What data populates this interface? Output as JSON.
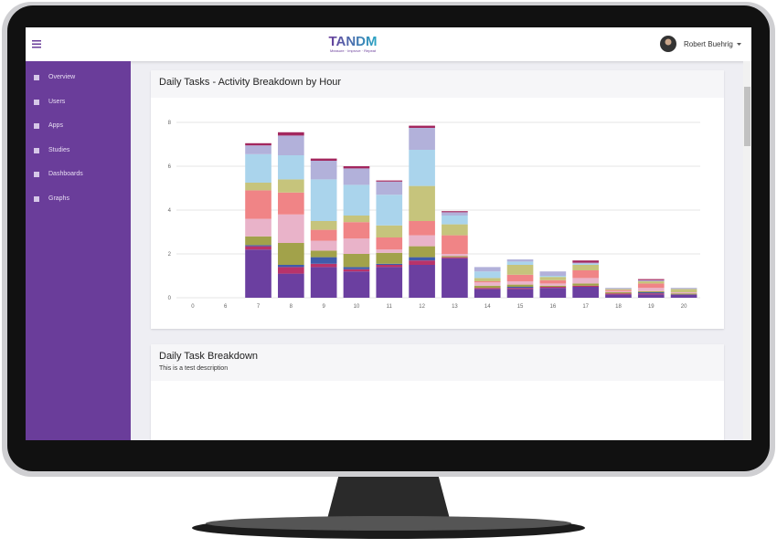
{
  "header": {
    "logo": "TANDM",
    "tagline": "Measure · Improve · Repeat",
    "user": "Robert Buehrig"
  },
  "sidebar": {
    "items": [
      "Overview",
      "Users",
      "Apps",
      "Studies",
      "Dashboards",
      "Graphs"
    ]
  },
  "cards": [
    {
      "title": "Daily Tasks - Activity Breakdown by Hour"
    },
    {
      "title": "Daily Task Breakdown",
      "description": "This is a test description"
    }
  ],
  "chart_data": {
    "type": "stacked_bar",
    "categories": [
      "0",
      "6",
      "7",
      "8",
      "9",
      "10",
      "11",
      "12",
      "13",
      "14",
      "15",
      "16",
      "17",
      "18",
      "19",
      "20"
    ],
    "ylim": [
      0,
      8
    ],
    "yticks": [
      0,
      2,
      4,
      6,
      8
    ],
    "grid": true,
    "series": [
      {
        "color": "#6b3fa0",
        "values": [
          0,
          0,
          2.2,
          1.1,
          1.4,
          1.2,
          1.4,
          1.5,
          1.8,
          0.4,
          0.4,
          0.45,
          0.5,
          0.15,
          0.15,
          0.15
        ]
      },
      {
        "color": "#b8336a",
        "values": [
          0,
          0,
          0.15,
          0.3,
          0.15,
          0.1,
          0.1,
          0.2,
          0.05,
          0.05,
          0.05,
          0.05,
          0.05,
          0.05,
          0.05,
          0
        ]
      },
      {
        "color": "#3f5bab",
        "values": [
          0,
          0,
          0.05,
          0.1,
          0.3,
          0.1,
          0.05,
          0.15,
          0,
          0,
          0.05,
          0,
          0,
          0,
          0.05,
          0
        ]
      },
      {
        "color": "#a2a24a",
        "values": [
          0,
          0,
          0.4,
          1.0,
          0.3,
          0.6,
          0.5,
          0.5,
          0.05,
          0.1,
          0.1,
          0.05,
          0.1,
          0.05,
          0.05,
          0.05
        ]
      },
      {
        "color": "#e9b3c9",
        "values": [
          0,
          0,
          0.8,
          1.3,
          0.45,
          0.7,
          0.15,
          0.5,
          0.1,
          0.15,
          0.15,
          0.1,
          0.25,
          0.05,
          0.15,
          0.05
        ]
      },
      {
        "color": "#f08486",
        "values": [
          0,
          0,
          1.3,
          1.0,
          0.5,
          0.75,
          0.55,
          0.65,
          0.85,
          0.05,
          0.3,
          0.15,
          0.35,
          0.05,
          0.2,
          0
        ]
      },
      {
        "color": "#c6c47c",
        "values": [
          0,
          0,
          0.35,
          0.6,
          0.4,
          0.3,
          0.55,
          1.6,
          0.5,
          0.15,
          0.45,
          0.15,
          0.25,
          0.05,
          0.1,
          0.15
        ]
      },
      {
        "color": "#aad4ec",
        "values": [
          0,
          0,
          1.3,
          1.1,
          1.9,
          1.4,
          1.4,
          1.65,
          0.4,
          0.3,
          0.15,
          0.05,
          0.05,
          0,
          0,
          0
        ]
      },
      {
        "color": "#b2b1da",
        "values": [
          0,
          0,
          0.4,
          0.9,
          0.85,
          0.75,
          0.6,
          1.0,
          0.15,
          0.2,
          0.1,
          0.2,
          0.05,
          0.05,
          0.05,
          0.05
        ]
      },
      {
        "color": "#a3275e",
        "values": [
          0,
          0,
          0.1,
          0.15,
          0.1,
          0.1,
          0.05,
          0.1,
          0.05,
          0,
          0,
          0,
          0.1,
          0,
          0.05,
          0
        ]
      }
    ]
  }
}
